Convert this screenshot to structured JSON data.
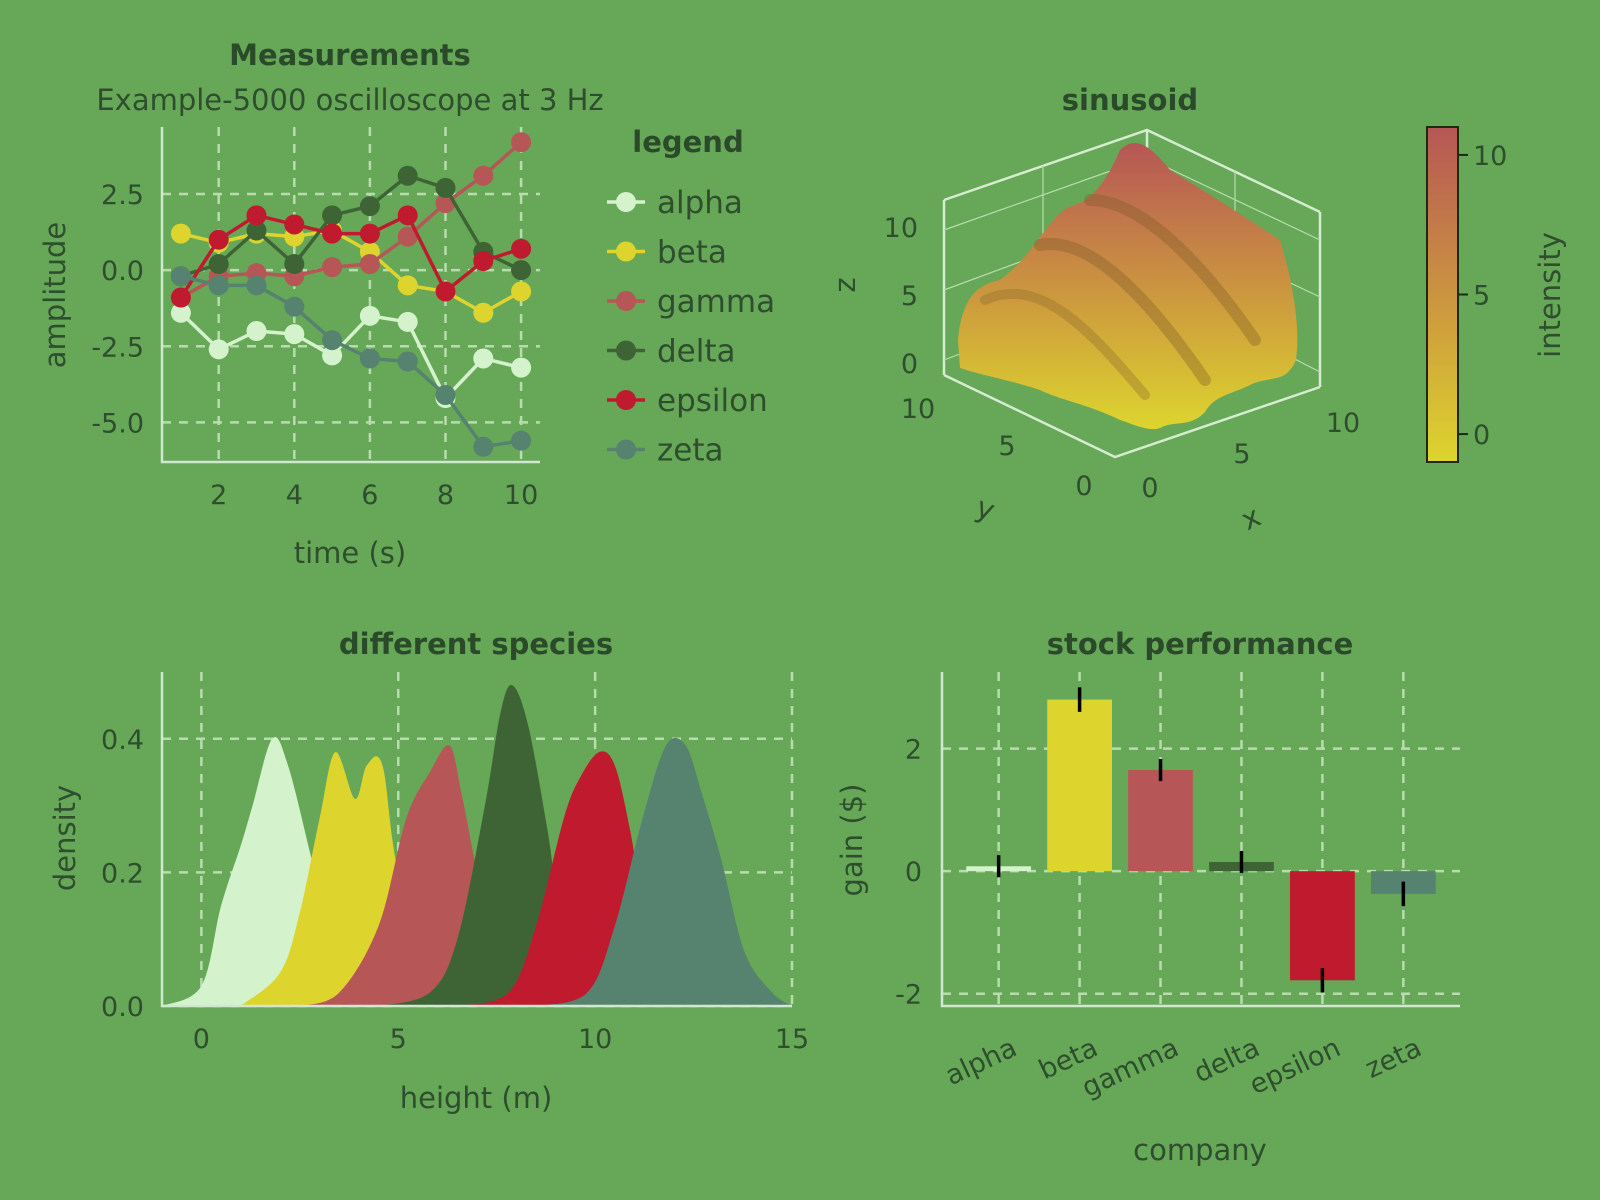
{
  "colors": {
    "alpha": "#d4f3cd",
    "beta": "#ddd52e",
    "gamma": "#b65656",
    "delta": "#3e6436",
    "epsilon": "#bf1a2e",
    "zeta": "#568270"
  },
  "panel_line": {
    "title": "Measurements",
    "subtitle": "Example-5000 oscilloscope at 3 Hz",
    "legend_title": "legend",
    "legend_placement": "right",
    "chart_data": {
      "type": "line",
      "x": [
        1,
        2,
        3,
        4,
        5,
        6,
        7,
        8,
        9,
        10
      ],
      "series": [
        {
          "name": "alpha",
          "values": [
            -1.4,
            -2.6,
            -2.0,
            -2.1,
            -2.8,
            -1.5,
            -1.7,
            -4.2,
            -2.9,
            -3.2
          ]
        },
        {
          "name": "beta",
          "values": [
            1.2,
            0.9,
            1.2,
            1.1,
            1.3,
            0.6,
            -0.5,
            -0.7,
            -1.4,
            -0.7
          ]
        },
        {
          "name": "gamma",
          "values": [
            -0.9,
            -0.2,
            -0.1,
            -0.2,
            0.1,
            0.2,
            1.1,
            2.2,
            3.1,
            4.2
          ]
        },
        {
          "name": "delta",
          "values": [
            -0.2,
            0.2,
            1.3,
            0.2,
            1.8,
            2.1,
            3.1,
            2.7,
            0.6,
            0.0
          ]
        },
        {
          "name": "epsilon",
          "values": [
            -0.9,
            1.0,
            1.8,
            1.5,
            1.2,
            1.2,
            1.8,
            -0.7,
            0.3,
            0.7
          ]
        },
        {
          "name": "zeta",
          "values": [
            -0.2,
            -0.5,
            -0.5,
            -1.2,
            -2.3,
            -2.9,
            -3.0,
            -4.1,
            -5.8,
            -5.6
          ]
        }
      ],
      "xlabel": "time (s)",
      "ylabel": "amplitude",
      "xlim": [
        0.5,
        10.5
      ],
      "ylim": [
        -6.3,
        4.7
      ],
      "xticks": [
        2,
        4,
        6,
        8,
        10
      ],
      "xtick_labels": [
        "2",
        "4",
        "6",
        "8",
        "10"
      ],
      "yticks": [
        -5,
        -2.5,
        0,
        2.5
      ],
      "ytick_labels": [
        "-5.0",
        "-2.5",
        "0.0",
        "2.5"
      ],
      "grid": true
    }
  },
  "panel_surface": {
    "title": "sinusoid",
    "chart_data": {
      "type": "surface",
      "x_range": [
        0,
        10
      ],
      "y_range": [
        0,
        10
      ],
      "z_range": [
        -1,
        11
      ],
      "xlabel": "x",
      "ylabel": "y",
      "zlabel": "z",
      "x_tick_labels": [
        "0",
        "5",
        "10"
      ],
      "y_tick_labels": [
        "0",
        "5",
        "10"
      ],
      "z_tick_labels": [
        "0",
        "5",
        "10"
      ],
      "colorbar_label": "intensity",
      "colorbar_range": [
        -1,
        11
      ],
      "colorbar_tick_labels": [
        "0",
        "5",
        "10"
      ],
      "colorscale": [
        "#ddd52e",
        "#cd9a3e",
        "#b65656"
      ]
    }
  },
  "panel_density": {
    "title": "different species",
    "chart_data": {
      "type": "area",
      "xlabel": "height (m)",
      "ylabel": "density",
      "xlim": [
        -1,
        15
      ],
      "ylim": [
        0,
        0.5
      ],
      "xticks": [
        0,
        5,
        10,
        15
      ],
      "xtick_labels": [
        "0",
        "5",
        "10",
        "15"
      ],
      "yticks": [
        0,
        0.2,
        0.4
      ],
      "ytick_labels": [
        "0.0",
        "0.2",
        "0.4"
      ],
      "grid": true,
      "series": [
        {
          "name": "alpha",
          "x": [
            -1,
            0,
            0.5,
            1,
            1.3,
            1.8,
            2.2,
            2.8,
            3.5,
            4.5
          ],
          "values": [
            0,
            0.03,
            0.15,
            0.24,
            0.3,
            0.4,
            0.36,
            0.22,
            0.05,
            0
          ]
        },
        {
          "name": "beta",
          "x": [
            1,
            2,
            2.5,
            3,
            3.4,
            3.9,
            4.2,
            4.6,
            5,
            6
          ],
          "values": [
            0,
            0.05,
            0.14,
            0.28,
            0.38,
            0.31,
            0.36,
            0.36,
            0.2,
            0
          ]
        },
        {
          "name": "gamma",
          "x": [
            2.5,
            3.5,
            4.5,
            5.2,
            5.8,
            6.3,
            6.6,
            7,
            7.5,
            8.5
          ],
          "values": [
            0,
            0.02,
            0.12,
            0.28,
            0.35,
            0.39,
            0.32,
            0.2,
            0.06,
            0
          ]
        },
        {
          "name": "delta",
          "x": [
            4.5,
            5.8,
            6.5,
            7.2,
            7.6,
            7.9,
            8.3,
            8.8,
            9.3,
            10.5
          ],
          "values": [
            0,
            0.02,
            0.1,
            0.3,
            0.44,
            0.48,
            0.42,
            0.26,
            0.08,
            0
          ]
        },
        {
          "name": "epsilon",
          "x": [
            6.5,
            7.8,
            8.5,
            9.2,
            9.6,
            10.1,
            10.5,
            10.9,
            11.4,
            12.5
          ],
          "values": [
            0,
            0.02,
            0.12,
            0.28,
            0.34,
            0.38,
            0.36,
            0.26,
            0.1,
            0
          ]
        },
        {
          "name": "zeta",
          "x": [
            8.5,
            9.8,
            10.5,
            11.2,
            11.8,
            12.3,
            12.7,
            13.2,
            13.8,
            14.5,
            15
          ],
          "values": [
            0,
            0.02,
            0.12,
            0.28,
            0.39,
            0.39,
            0.32,
            0.22,
            0.08,
            0.02,
            0
          ]
        }
      ]
    }
  },
  "panel_bars": {
    "title": "stock performance",
    "chart_data": {
      "type": "bar",
      "categories": [
        "alpha",
        "beta",
        "gamma",
        "delta",
        "epsilon",
        "zeta"
      ],
      "values": [
        0.08,
        2.8,
        1.65,
        0.15,
        -1.78,
        -0.37
      ],
      "errors": [
        0.18,
        0.2,
        0.18,
        0.18,
        0.2,
        0.2
      ],
      "xlabel": "company",
      "ylabel": "gain ($)",
      "ylim": [
        -2.2,
        3.25
      ],
      "yticks": [
        -2,
        0,
        2
      ],
      "ytick_labels": [
        "-2",
        "0",
        "2"
      ],
      "grid": true
    }
  }
}
